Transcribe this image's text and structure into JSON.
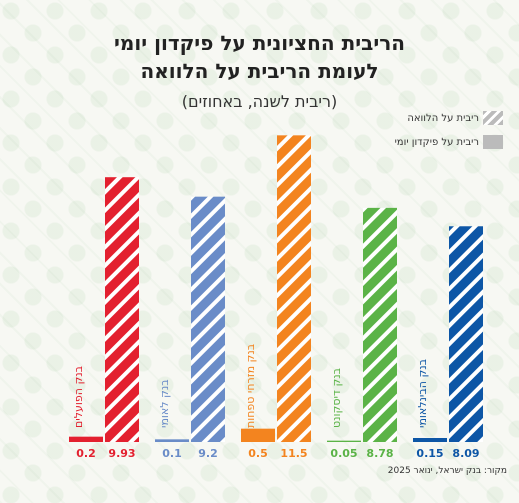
{
  "chart_data": {
    "type": "bar",
    "title_line1": "הריבית החציונית על פיקדון יומי",
    "title_line2": "לעומת הריבית על הלוואה",
    "subtitle": "(ריבית לשנה, באחוזים)",
    "legend": [
      "ריבית על הלוואה",
      "ריבית על פיקדון יומי"
    ],
    "source": "מקור: בנק ישראל, ינואר 2025",
    "ylim": [
      0,
      12
    ],
    "grid": false,
    "legend_position": "top-right",
    "groups": [
      {
        "bank": "בנק הפועלים",
        "deposit": 0.2,
        "loan": 9.93,
        "deposit_label": "0.2",
        "loan_label": "9.93",
        "color": "#e3202f"
      },
      {
        "bank": "בנק לאומי",
        "deposit": 0.1,
        "loan": 9.2,
        "deposit_label": "0.1",
        "loan_label": "9.2",
        "color": "#6a8cc8"
      },
      {
        "bank": "בנק מזרחי טפחות",
        "deposit": 0.5,
        "loan": 11.5,
        "deposit_label": "0.5",
        "loan_label": "11.5",
        "color": "#f3841f"
      },
      {
        "bank": "בנק דיסקונט",
        "deposit": 0.05,
        "loan": 8.78,
        "deposit_label": "0.05",
        "loan_label": "8.78",
        "color": "#5bb347"
      },
      {
        "bank": "בנק הבינלאומי",
        "deposit": 0.15,
        "loan": 8.09,
        "deposit_label": "0.15",
        "loan_label": "8.09",
        "color": "#0d56a6"
      }
    ]
  }
}
